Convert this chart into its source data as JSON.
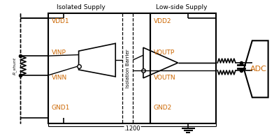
{
  "figsize": [
    3.92,
    1.95
  ],
  "dpi": 100,
  "bg_color": "#ffffff",
  "line_color": "#000000",
  "orange_color": "#cc6600",
  "labels": {
    "isolated_supply": "Isolated Supply",
    "low_side_supply": "Low-side Supply",
    "vdd1": "VDD1",
    "vdd2": "VDD2",
    "vinp": "VINP",
    "vinn": "VINN",
    "voutp": "VOUTP",
    "voutn": "VOUTN",
    "gnd1": "GND1",
    "gnd2": "GND2",
    "isolation_barrier": "Isolation Barrier",
    "adc": "ADC",
    "rshunt": "R_shunt",
    "dimension": ".1200"
  },
  "font_label": 6.5,
  "font_small": 5.5,
  "font_adc": 8
}
